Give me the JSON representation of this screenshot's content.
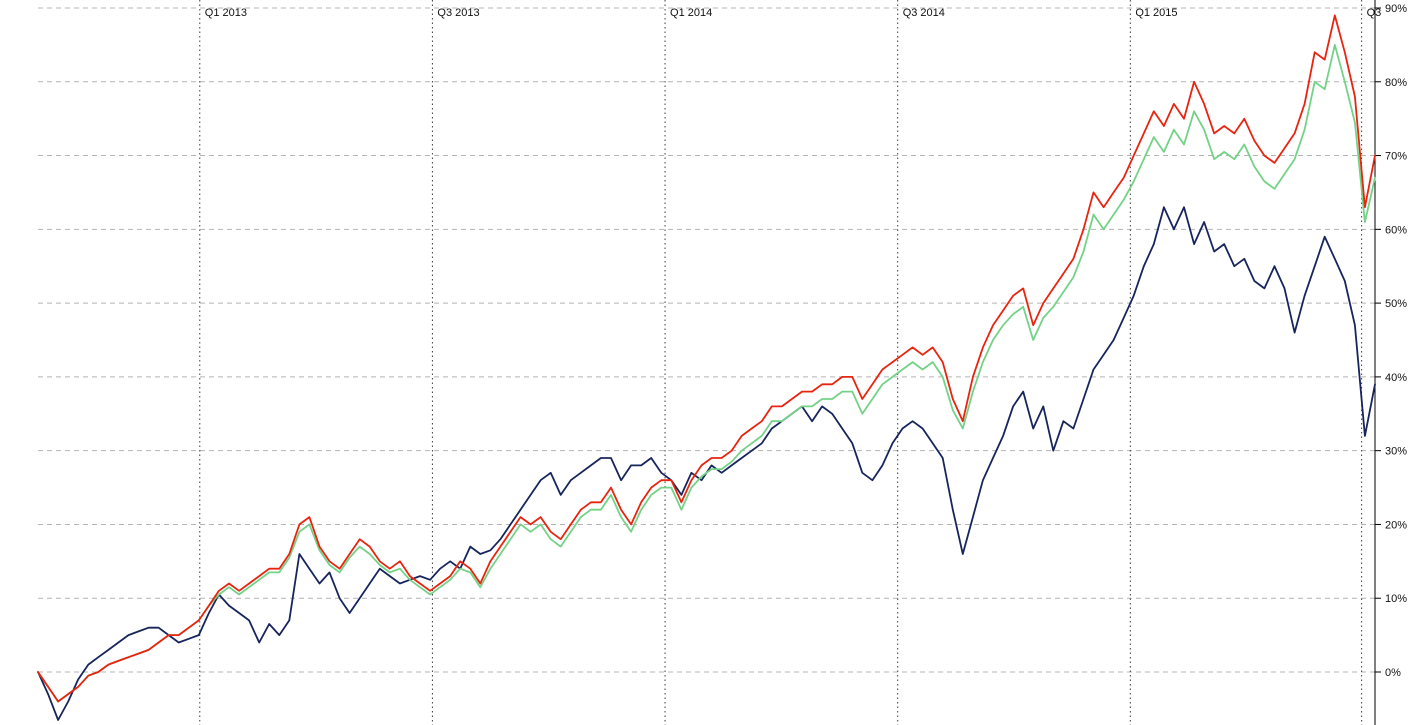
{
  "chart_data": {
    "type": "line",
    "title": "",
    "xlabel": "",
    "ylabel": "",
    "grid": true,
    "legend": "none",
    "ylim": [
      -7,
      90
    ],
    "y_axis": {
      "suffix": "%",
      "ticks": [
        90,
        80,
        70,
        60,
        50,
        40,
        30,
        20,
        10,
        0
      ]
    },
    "x_axis": {
      "ticks": [
        {
          "label": "Q1 2013",
          "pos": 0.121
        },
        {
          "label": "Q3 2013",
          "pos": 0.295
        },
        {
          "label": "Q1 2014",
          "pos": 0.469
        },
        {
          "label": "Q3 2014",
          "pos": 0.643
        },
        {
          "label": "Q1 2015",
          "pos": 0.817
        },
        {
          "label": "Q3",
          "pos": 0.99
        }
      ]
    },
    "series": [
      {
        "name": "dark-blue-series",
        "color": "#17255c",
        "values": [
          0,
          -3,
          -6.5,
          -4,
          -1,
          1,
          2,
          3,
          4,
          5,
          5.5,
          6,
          6,
          5,
          4,
          4.5,
          5,
          8,
          10.5,
          9,
          8,
          7,
          4,
          6.5,
          5,
          7,
          16,
          14,
          12,
          13.5,
          10,
          8,
          10,
          12,
          14,
          13,
          12,
          12.5,
          13,
          12.5,
          14,
          15,
          14,
          17,
          16,
          16.5,
          18,
          20,
          22,
          24,
          26,
          27,
          24,
          26,
          27,
          28,
          29,
          29,
          26,
          28,
          28,
          29,
          27,
          26,
          24,
          27,
          26,
          28,
          27,
          28,
          29,
          30,
          31,
          33,
          34,
          35,
          36,
          34,
          36,
          35,
          33,
          31,
          27,
          26,
          28,
          31,
          33,
          34,
          33,
          31,
          29,
          22,
          16,
          21,
          26,
          29,
          32,
          36,
          38,
          33,
          36,
          30,
          34,
          33,
          37,
          41,
          43,
          45,
          48,
          51,
          55,
          58,
          63,
          60,
          63,
          58,
          61,
          57,
          58,
          55,
          56,
          53,
          52,
          55,
          52,
          46,
          51,
          55,
          59,
          56,
          53,
          47,
          32,
          39
        ]
      },
      {
        "name": "green-series",
        "color": "#74d287",
        "values": [
          0,
          -2,
          -4,
          -3,
          -2,
          -0.5,
          0,
          1,
          1.5,
          2,
          2.5,
          3,
          4,
          5,
          5,
          6,
          7,
          9,
          10.5,
          11.5,
          10.5,
          11.5,
          12.5,
          13.5,
          13.5,
          15.5,
          19,
          20,
          16.5,
          14.5,
          13.5,
          15.5,
          17,
          16,
          14.5,
          13.5,
          14,
          12.5,
          11.5,
          10.5,
          11.5,
          12.5,
          14,
          13.5,
          11.5,
          14,
          16,
          18,
          20,
          19,
          20,
          18,
          17,
          19,
          21,
          22,
          22,
          24,
          21,
          19,
          22,
          24,
          25,
          25,
          22,
          25,
          26.5,
          27.5,
          27.5,
          28.5,
          30,
          31,
          32,
          34,
          34,
          35,
          36,
          36,
          37,
          37,
          38,
          38,
          35,
          37,
          39,
          40,
          41,
          42,
          41,
          42,
          40,
          35.5,
          33,
          38,
          42,
          45,
          47,
          48.5,
          49.5,
          45,
          48,
          49.5,
          51.5,
          53.5,
          57,
          62,
          60,
          62,
          64,
          66.5,
          69.5,
          72.5,
          70.5,
          73.5,
          71.5,
          76,
          73.5,
          69.5,
          70.5,
          69.5,
          71.5,
          68.5,
          66.5,
          65.5,
          67.5,
          69.5,
          73.5,
          80,
          79,
          85,
          80,
          74.5,
          61,
          67
        ]
      },
      {
        "name": "red-series",
        "color": "#e8240f",
        "values": [
          0,
          -2,
          -4,
          -3,
          -2,
          -0.5,
          0,
          1,
          1.5,
          2,
          2.5,
          3,
          4,
          5,
          5,
          6,
          7,
          9,
          11,
          12,
          11,
          12,
          13,
          14,
          14,
          16,
          20,
          21,
          17,
          15,
          14,
          16,
          18,
          17,
          15,
          14,
          15,
          13,
          12,
          11,
          12,
          13,
          15,
          14,
          12,
          15,
          17,
          19,
          21,
          20,
          21,
          19,
          18,
          20,
          22,
          23,
          23,
          25,
          22,
          20,
          23,
          25,
          26,
          26,
          23,
          26,
          28,
          29,
          29,
          30,
          32,
          33,
          34,
          36,
          36,
          37,
          38,
          38,
          39,
          39,
          40,
          40,
          37,
          39,
          41,
          42,
          43,
          44,
          43,
          44,
          42,
          37,
          34,
          40,
          44,
          47,
          49,
          51,
          52,
          47,
          50,
          52,
          54,
          56,
          60,
          65,
          63,
          65,
          67,
          70,
          73,
          76,
          74,
          77,
          75,
          80,
          77,
          73,
          74,
          73,
          75,
          72,
          70,
          69,
          71,
          73,
          77,
          84,
          83,
          89,
          84,
          78,
          63,
          70
        ]
      }
    ],
    "colors": {
      "h_gridline": "#b4b4b4",
      "v_gridline": "#3c3c3c",
      "axis": "#000000",
      "label": "#111111"
    }
  }
}
